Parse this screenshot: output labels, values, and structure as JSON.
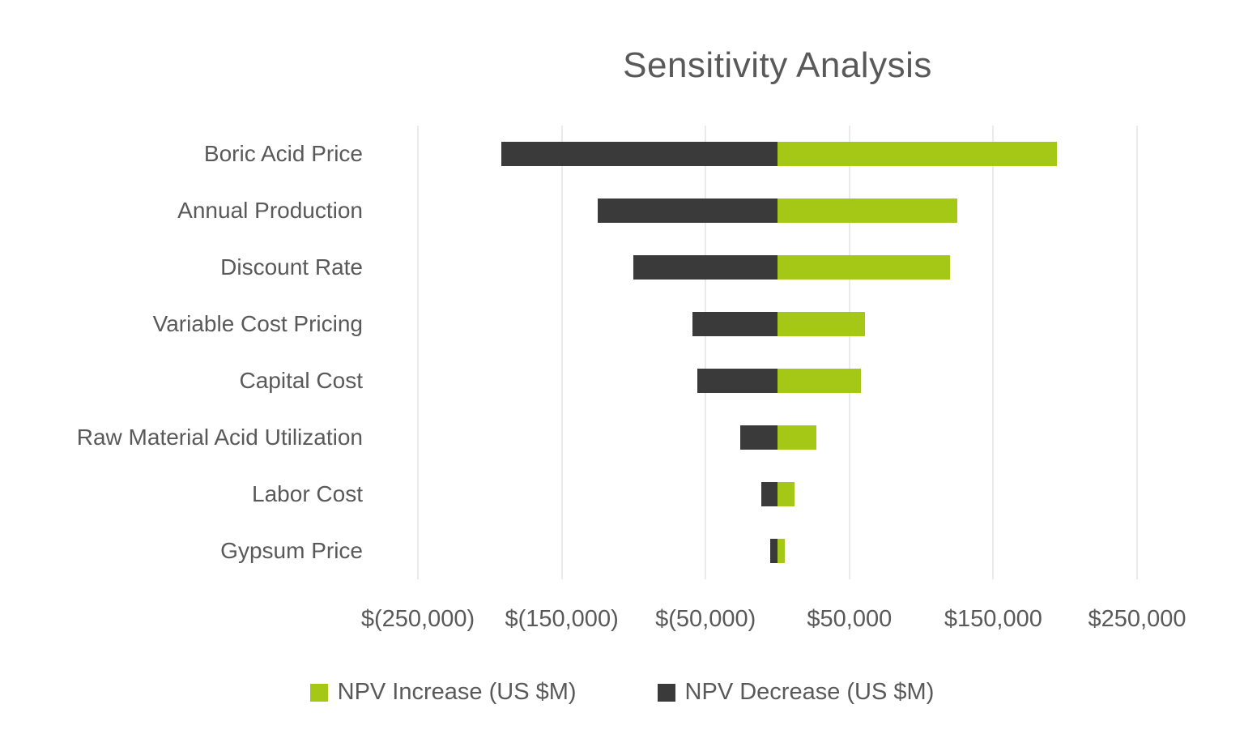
{
  "title": "Sensitivity Analysis",
  "colors": {
    "increase": "#a5c716",
    "decrease": "#3a3a3a",
    "gridline": "#d6d6d6",
    "text": "#595959"
  },
  "chart_data": {
    "type": "bar",
    "orientation": "horizontal",
    "title": "Sensitivity Analysis",
    "categories": [
      "Boric Acid Price",
      "Annual Production",
      "Discount Rate",
      "Variable Cost Pricing",
      "Capital Cost",
      "Raw Material Acid Utilization",
      "Labor Cost",
      "Gypsum Price"
    ],
    "series": [
      {
        "name": "NPV Increase (US $M)",
        "color": "#a5c716",
        "values": [
          194000,
          125000,
          120000,
          61000,
          58000,
          27000,
          12000,
          5000
        ]
      },
      {
        "name": "NPV Decrease (US $M)",
        "color": "#3a3a3a",
        "values": [
          -192000,
          -125000,
          -100000,
          -59000,
          -56000,
          -26000,
          -11000,
          -5000
        ]
      }
    ],
    "xlim": [
      -250000,
      250000
    ],
    "x_ticks": [
      -250000,
      -150000,
      -50000,
      50000,
      150000,
      250000
    ],
    "x_tick_labels": [
      "$(250,000)",
      "$(150,000)",
      "$(50,000)",
      "$50,000",
      "$150,000",
      "$250,000"
    ],
    "xlabel": "",
    "ylabel": "",
    "grid": "vertical-only",
    "legend_position": "bottom"
  },
  "legend": {
    "items": [
      {
        "label": "NPV Increase (US $M)",
        "color": "#a5c716"
      },
      {
        "label": "NPV Decrease (US $M)",
        "color": "#3a3a3a"
      }
    ]
  }
}
